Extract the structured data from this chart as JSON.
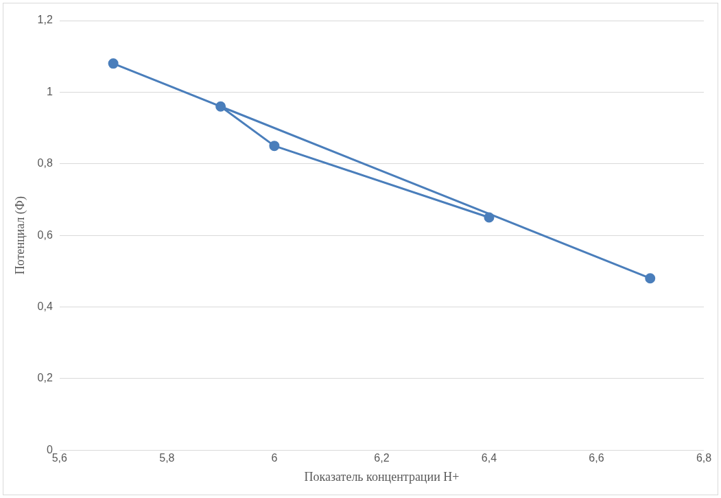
{
  "chart_data": {
    "type": "line",
    "xlabel": "Показатель концентрации H+",
    "ylabel": "Потенциал (Ф)",
    "series": [
      {
        "color": "#4a7ebb",
        "x": [
          5.7,
          6.7,
          5.9,
          6.0,
          6.4
        ],
        "values": [
          1.08,
          0.48,
          0.96,
          0.85,
          0.65
        ]
      }
    ],
    "xlim": [
      5.6,
      6.8
    ],
    "xticks": [
      {
        "value": 5.6,
        "label": "5,6"
      },
      {
        "value": 5.8,
        "label": "5,8"
      },
      {
        "value": 6,
        "label": "6"
      },
      {
        "value": 6.2,
        "label": "6,2"
      },
      {
        "value": 6.4,
        "label": "6,4"
      },
      {
        "value": 6.6,
        "label": "6,6"
      },
      {
        "value": 6.8,
        "label": "6,8"
      }
    ],
    "ylim": [
      0,
      1.2
    ],
    "yticks": [
      0,
      {
        "value": 0.2,
        "label": "0,2"
      },
      {
        "value": 0.4,
        "label": "0,4"
      },
      {
        "value": 0.6,
        "label": "0,6"
      },
      {
        "value": 0.8,
        "label": "0,8"
      },
      1,
      {
        "value": 1.2,
        "label": "1,2"
      }
    ],
    "grid": "y",
    "legend": false,
    "marker": "circle",
    "line_style": "solid"
  }
}
